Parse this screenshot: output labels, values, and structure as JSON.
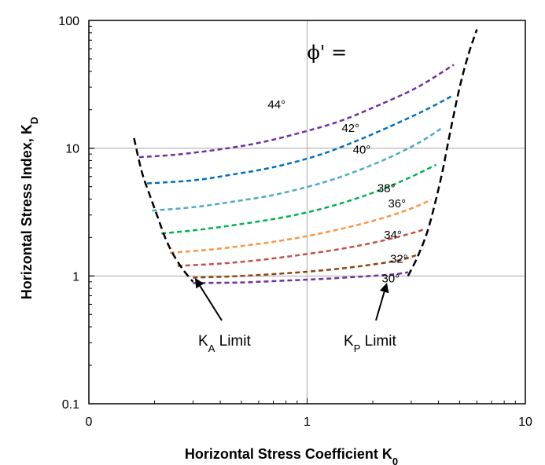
{
  "chart_data": {
    "type": "line",
    "xlabel": "Horizontal Stress Coefficient K",
    "xlabel_sub": "0",
    "ylabel": "Horizontal Stress Index, K",
    "ylabel_sub": "D",
    "x_scale": "log",
    "y_scale": "log",
    "xlim": [
      0.1,
      10
    ],
    "ylim": [
      0.1,
      100
    ],
    "x_tick_labels": [
      "0",
      "1",
      "10"
    ],
    "y_tick_labels": [
      "0.1",
      "1",
      "10",
      "100"
    ],
    "grid": true,
    "phi_title": "ϕ' =",
    "series": [
      {
        "name": "30°",
        "color": "#7030a0",
        "x": [
          0.3,
          0.5,
          0.8,
          1.2,
          1.8,
          2.5,
          2.9
        ],
        "y": [
          0.88,
          0.89,
          0.92,
          0.95,
          0.99,
          1.03,
          1.07
        ]
      },
      {
        "name": "32°",
        "color": "#8b4513",
        "x": [
          0.3,
          0.5,
          0.8,
          1.2,
          1.8,
          2.6,
          3.15
        ],
        "y": [
          0.97,
          1.0,
          1.05,
          1.11,
          1.2,
          1.32,
          1.45
        ]
      },
      {
        "name": "34°",
        "color": "#c0504d",
        "x": [
          0.255,
          0.4,
          0.6,
          0.9,
          1.4,
          2.1,
          2.9,
          3.4
        ],
        "y": [
          1.2,
          1.25,
          1.33,
          1.45,
          1.62,
          1.85,
          2.12,
          2.3
        ]
      },
      {
        "name": "36°",
        "color": "#f79646",
        "x": [
          0.235,
          0.35,
          0.55,
          0.85,
          1.3,
          2.0,
          2.9,
          3.7
        ],
        "y": [
          1.52,
          1.6,
          1.75,
          1.95,
          2.25,
          2.7,
          3.3,
          3.95
        ]
      },
      {
        "name": "38°",
        "color": "#00b050",
        "x": [
          0.215,
          0.32,
          0.5,
          0.8,
          1.2,
          1.8,
          2.7,
          3.9
        ],
        "y": [
          2.15,
          2.3,
          2.55,
          2.9,
          3.4,
          4.2,
          5.5,
          7.4
        ]
      },
      {
        "name": "40°",
        "color": "#4bacc6",
        "x": [
          0.195,
          0.3,
          0.45,
          0.7,
          1.1,
          1.6,
          2.4,
          3.3,
          4.1
        ],
        "y": [
          3.25,
          3.45,
          3.8,
          4.3,
          5.2,
          6.4,
          8.5,
          11.2,
          14.2
        ]
      },
      {
        "name": "42°",
        "color": "#0070c0",
        "x": [
          0.185,
          0.3,
          0.45,
          0.7,
          1.1,
          1.6,
          2.4,
          3.4,
          4.6
        ],
        "y": [
          5.3,
          5.6,
          6.2,
          7.1,
          8.7,
          11.0,
          14.8,
          19.5,
          25.5
        ]
      },
      {
        "name": "44°",
        "color": "#7030a0",
        "x": [
          0.17,
          0.25,
          0.4,
          0.6,
          0.9,
          1.4,
          2.1,
          3.2,
          4.7
        ],
        "y": [
          8.5,
          8.9,
          9.8,
          11.0,
          13.0,
          16.2,
          21.5,
          30.0,
          45.0
        ]
      }
    ],
    "limits": [
      {
        "name": "KA Limit",
        "label_main": "K",
        "label_sub": "A",
        "label_rest": " Limit",
        "color": "#000000",
        "x": [
          0.161,
          0.175,
          0.192,
          0.208,
          0.225,
          0.245,
          0.27,
          0.3
        ],
        "y": [
          12.0,
          6.5,
          4.1,
          2.8,
          1.95,
          1.45,
          1.12,
          0.9
        ]
      },
      {
        "name": "KP Limit",
        "label_main": "K",
        "label_sub": "P",
        "label_rest": " Limit",
        "color": "#000000",
        "x": [
          2.9,
          3.2,
          3.55,
          3.9,
          4.2,
          4.55,
          5.0,
          5.5,
          6.0
        ],
        "y": [
          1.0,
          1.4,
          2.2,
          4.0,
          7.0,
          14.0,
          30.0,
          55.0,
          85.0
        ]
      }
    ],
    "annotations": [
      {
        "text": "44°",
        "x": 0.66,
        "y": 20.5
      },
      {
        "text": "42°",
        "x": 1.44,
        "y": 13.4
      },
      {
        "text": "40°",
        "x": 1.62,
        "y": 9.1
      },
      {
        "text": "38°",
        "x": 2.1,
        "y": 4.55
      },
      {
        "text": "36°",
        "x": 2.35,
        "y": 3.45
      },
      {
        "text": "34°",
        "x": 2.25,
        "y": 1.95
      },
      {
        "text": "32°",
        "x": 2.4,
        "y": 1.27
      },
      {
        "text": "30°",
        "x": 2.2,
        "y": 0.89
      }
    ]
  }
}
